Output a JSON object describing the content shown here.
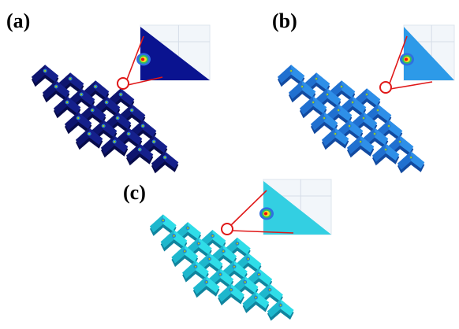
{
  "panels": [
    {
      "label": "(a)",
      "colors": {
        "main": "#15208c",
        "side": "#0c1266",
        "dark": "#070b4a",
        "inset": "#0a1390"
      }
    },
    {
      "label": "(b)",
      "colors": {
        "main": "#2e8fe8",
        "side": "#1c66c8",
        "dark": "#124aa0",
        "inset": "#2d9ae8"
      }
    },
    {
      "label": "(c)",
      "colors": {
        "main": "#2fdde8",
        "side": "#1aa9c4",
        "dark": "#10849e",
        "inset": "#33cfe2"
      }
    }
  ],
  "highlight_color": "#e01818",
  "hotspot_colors": [
    "#f01010",
    "#f8e020",
    "#30c060",
    "#2f6fe0"
  ]
}
